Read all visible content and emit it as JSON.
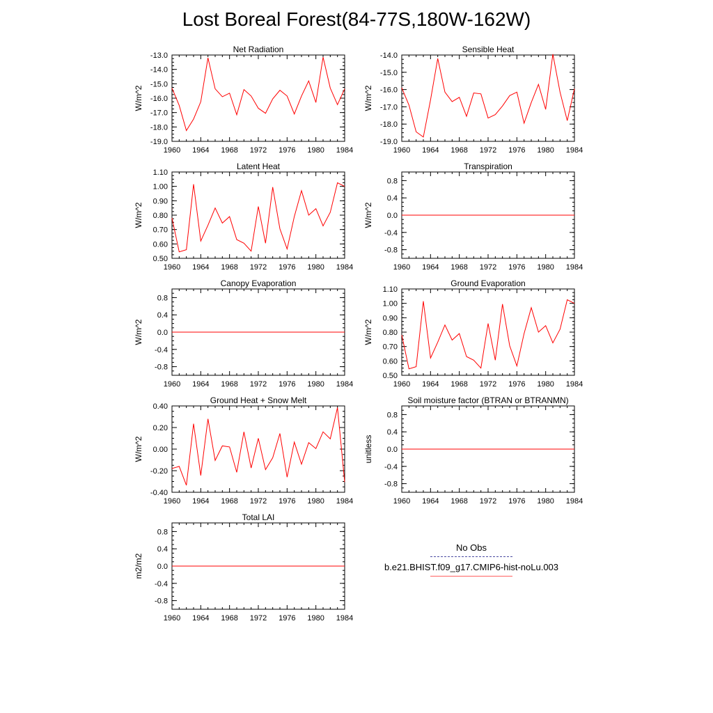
{
  "title": "Lost Boreal Forest(84-77S,180W-162W)",
  "colors": {
    "model_line": "#ff0000",
    "obs_line": "#4a4aa0",
    "axis": "#000000"
  },
  "legend": {
    "entries": [
      {
        "label": "No Obs",
        "style": "dashed",
        "color": "#4a4aa0"
      },
      {
        "label": "b.e21.BHIST.f09_g17.CMIP6-hist-noLu.003",
        "style": "solid",
        "color": "#ff6060"
      }
    ]
  },
  "chart_data": [
    {
      "type": "line",
      "title": "Net Radiation",
      "ylabel": "W/m^2",
      "xlim": [
        1960,
        1984
      ],
      "ylim": [
        -19.0,
        -13.0
      ],
      "xticks": [
        1960,
        1964,
        1968,
        1972,
        1976,
        1980,
        1984
      ],
      "yticks": [
        "-13.0",
        "-14.0",
        "-15.0",
        "-16.0",
        "-17.0",
        "-18.0",
        "-19.0"
      ],
      "x": [
        1960,
        1961,
        1962,
        1963,
        1964,
        1965,
        1966,
        1967,
        1968,
        1969,
        1970,
        1971,
        1972,
        1973,
        1974,
        1975,
        1976,
        1977,
        1978,
        1979,
        1980,
        1981,
        1982,
        1983,
        1984
      ],
      "series": [
        {
          "values": [
            -15.3,
            -16.5,
            -18.25,
            -17.45,
            -16.25,
            -13.2,
            -15.35,
            -15.9,
            -15.65,
            -17.15,
            -15.4,
            -15.85,
            -16.7,
            -17.05,
            -16.05,
            -15.45,
            -15.85,
            -17.1,
            -15.85,
            -14.8,
            -16.3,
            -13.15,
            -15.3,
            -16.45,
            -15.35
          ]
        }
      ]
    },
    {
      "type": "line",
      "title": "Sensible Heat",
      "ylabel": "W/m^2",
      "xlim": [
        1960,
        1984
      ],
      "ylim": [
        -19.0,
        -14.0
      ],
      "xticks": [
        1960,
        1964,
        1968,
        1972,
        1976,
        1980,
        1984
      ],
      "yticks": [
        "-14.0",
        "-15.0",
        "-16.0",
        "-17.0",
        "-18.0",
        "-19.0"
      ],
      "x": [
        1960,
        1961,
        1962,
        1963,
        1964,
        1965,
        1966,
        1967,
        1968,
        1969,
        1970,
        1971,
        1972,
        1973,
        1974,
        1975,
        1976,
        1977,
        1978,
        1979,
        1980,
        1981,
        1982,
        1983,
        1984
      ],
      "series": [
        {
          "values": [
            -15.9,
            -16.9,
            -18.45,
            -18.75,
            -16.6,
            -14.2,
            -16.15,
            -16.7,
            -16.45,
            -17.55,
            -16.2,
            -16.25,
            -17.65,
            -17.45,
            -16.95,
            -16.35,
            -16.15,
            -17.95,
            -16.75,
            -15.7,
            -17.15,
            -13.95,
            -16.15,
            -17.8,
            -15.95
          ]
        }
      ]
    },
    {
      "type": "line",
      "title": "Latent Heat",
      "ylabel": "W/m^2",
      "xlim": [
        1960,
        1984
      ],
      "ylim": [
        0.5,
        1.1
      ],
      "xticks": [
        1960,
        1964,
        1968,
        1972,
        1976,
        1980,
        1984
      ],
      "yticks": [
        "1.10",
        "1.00",
        "0.90",
        "0.80",
        "0.70",
        "0.60",
        "0.50"
      ],
      "x": [
        1960,
        1961,
        1962,
        1963,
        1964,
        1965,
        1966,
        1967,
        1968,
        1969,
        1970,
        1971,
        1972,
        1973,
        1974,
        1975,
        1976,
        1977,
        1978,
        1979,
        1980,
        1981,
        1982,
        1983,
        1984
      ],
      "series": [
        {
          "values": [
            0.78,
            0.545,
            0.56,
            1.015,
            0.62,
            0.73,
            0.85,
            0.745,
            0.79,
            0.63,
            0.605,
            0.55,
            0.86,
            0.605,
            0.995,
            0.705,
            0.565,
            0.79,
            0.97,
            0.8,
            0.845,
            0.725,
            0.82,
            1.025,
            1.0
          ]
        }
      ]
    },
    {
      "type": "line",
      "title": "Transpiration",
      "ylabel": "W/m^2",
      "xlim": [
        1960,
        1984
      ],
      "ylim": [
        -1.0,
        1.0
      ],
      "xticks": [
        1960,
        1964,
        1968,
        1972,
        1976,
        1980,
        1984
      ],
      "yticks": [
        "0.8",
        "0.4",
        "0.0",
        "-0.4",
        "-0.8"
      ],
      "ytick_values": [
        0.8,
        0.4,
        0.0,
        -0.4,
        -0.8
      ],
      "x": [
        1960,
        1984
      ],
      "series": [
        {
          "values": [
            0.0,
            0.0
          ]
        }
      ]
    },
    {
      "type": "line",
      "title": "Canopy Evaporation",
      "ylabel": "W/m^2",
      "xlim": [
        1960,
        1984
      ],
      "ylim": [
        -1.0,
        1.0
      ],
      "xticks": [
        1960,
        1964,
        1968,
        1972,
        1976,
        1980,
        1984
      ],
      "yticks": [
        "0.8",
        "0.4",
        "0.0",
        "-0.4",
        "-0.8"
      ],
      "ytick_values": [
        0.8,
        0.4,
        0.0,
        -0.4,
        -0.8
      ],
      "x": [
        1960,
        1984
      ],
      "series": [
        {
          "values": [
            0.0,
            0.0
          ]
        }
      ]
    },
    {
      "type": "line",
      "title": "Ground Evaporation",
      "ylabel": "W/m^2",
      "xlim": [
        1960,
        1984
      ],
      "ylim": [
        0.5,
        1.1
      ],
      "xticks": [
        1960,
        1964,
        1968,
        1972,
        1976,
        1980,
        1984
      ],
      "yticks": [
        "1.10",
        "1.00",
        "0.90",
        "0.80",
        "0.70",
        "0.60",
        "0.50"
      ],
      "x": [
        1960,
        1961,
        1962,
        1963,
        1964,
        1965,
        1966,
        1967,
        1968,
        1969,
        1970,
        1971,
        1972,
        1973,
        1974,
        1975,
        1976,
        1977,
        1978,
        1979,
        1980,
        1981,
        1982,
        1983,
        1984
      ],
      "series": [
        {
          "values": [
            0.78,
            0.545,
            0.56,
            1.015,
            0.62,
            0.73,
            0.85,
            0.745,
            0.79,
            0.63,
            0.605,
            0.55,
            0.86,
            0.605,
            0.995,
            0.705,
            0.565,
            0.79,
            0.97,
            0.8,
            0.845,
            0.725,
            0.82,
            1.025,
            1.0
          ]
        }
      ]
    },
    {
      "type": "line",
      "title": "Ground Heat + Snow Melt",
      "ylabel": "W/m^2",
      "xlim": [
        1960,
        1984
      ],
      "ylim": [
        -0.4,
        0.4
      ],
      "xticks": [
        1960,
        1964,
        1968,
        1972,
        1976,
        1980,
        1984
      ],
      "yticks": [
        "0.40",
        "0.20",
        "0.00",
        "-0.20",
        "-0.40"
      ],
      "x": [
        1960,
        1961,
        1962,
        1963,
        1964,
        1965,
        1966,
        1967,
        1968,
        1969,
        1970,
        1971,
        1972,
        1973,
        1974,
        1975,
        1976,
        1977,
        1978,
        1979,
        1980,
        1981,
        1982,
        1983,
        1984
      ],
      "series": [
        {
          "values": [
            -0.18,
            -0.16,
            -0.335,
            0.235,
            -0.245,
            0.28,
            -0.105,
            0.03,
            0.02,
            -0.215,
            0.16,
            -0.175,
            0.1,
            -0.19,
            -0.08,
            0.145,
            -0.26,
            0.065,
            -0.14,
            0.06,
            0.005,
            0.16,
            0.095,
            0.385,
            -0.305
          ]
        }
      ]
    },
    {
      "type": "line",
      "title": "Soil moisture factor (BTRAN or BTRANMN)",
      "ylabel": "unitless",
      "xlim": [
        1960,
        1984
      ],
      "ylim": [
        -1.0,
        1.0
      ],
      "xticks": [
        1960,
        1964,
        1968,
        1972,
        1976,
        1980,
        1984
      ],
      "yticks": [
        "0.8",
        "0.4",
        "0.0",
        "-0.4",
        "-0.8"
      ],
      "ytick_values": [
        0.8,
        0.4,
        0.0,
        -0.4,
        -0.8
      ],
      "x": [
        1960,
        1984
      ],
      "series": [
        {
          "values": [
            0.0,
            0.0
          ]
        }
      ]
    },
    {
      "type": "line",
      "title": "Total LAI",
      "ylabel": "m2/m2",
      "xlim": [
        1960,
        1984
      ],
      "ylim": [
        -1.0,
        1.0
      ],
      "xticks": [
        1960,
        1964,
        1968,
        1972,
        1976,
        1980,
        1984
      ],
      "yticks": [
        "0.8",
        "0.4",
        "0.0",
        "-0.4",
        "-0.8"
      ],
      "ytick_values": [
        0.8,
        0.4,
        0.0,
        -0.4,
        -0.8
      ],
      "x": [
        1960,
        1984
      ],
      "series": [
        {
          "values": [
            0.0,
            0.0
          ]
        }
      ]
    }
  ]
}
